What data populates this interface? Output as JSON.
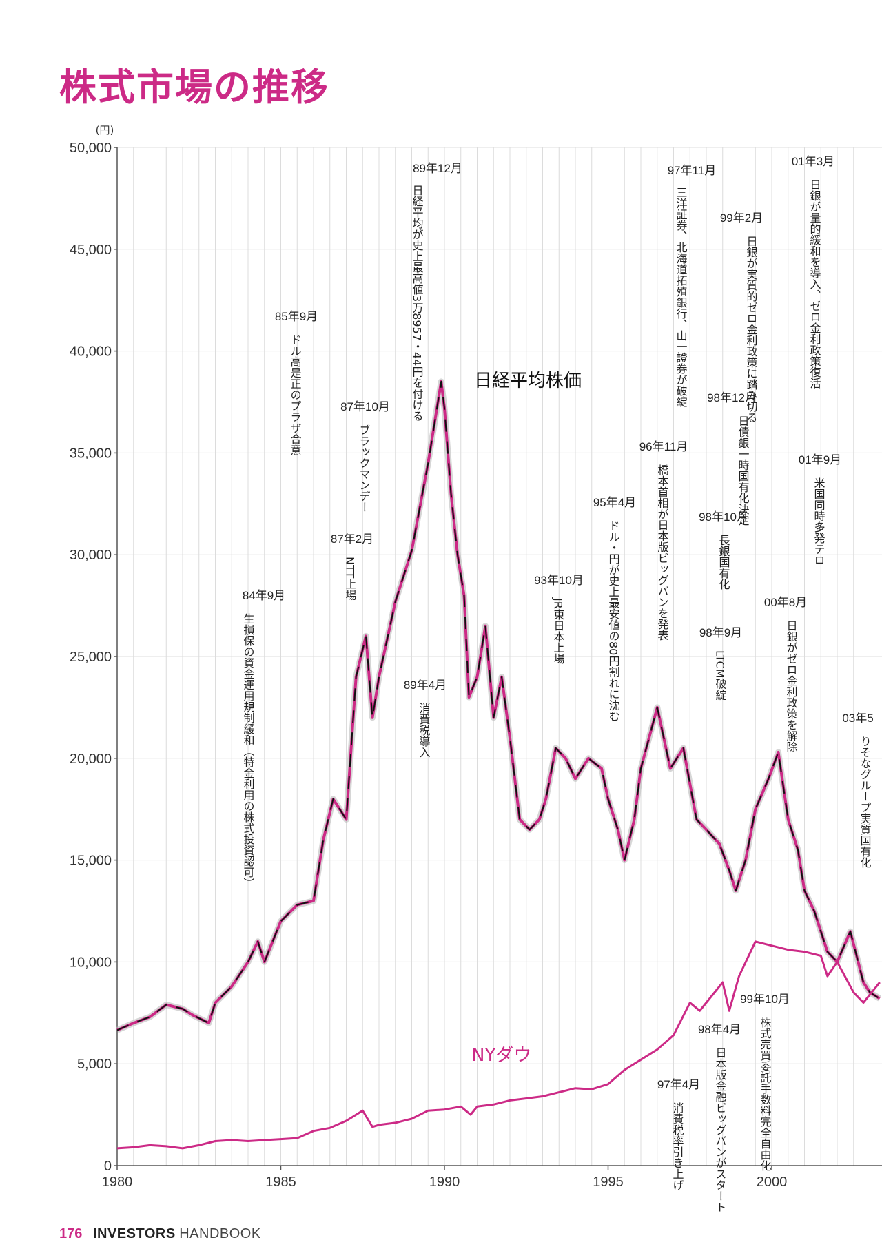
{
  "page_title": "株式市場の推移",
  "footer": {
    "page_number": "176",
    "brand": "INVESTORS",
    "handbook": "HANDBOOK"
  },
  "colors": {
    "accent": "#cc2a86",
    "nikkei_main": "#111111",
    "nikkei_shadow": "#bbbbbb"
  },
  "chart_data": {
    "type": "line",
    "y_unit": "(円)",
    "ylim": [
      0,
      50000
    ],
    "xlim": [
      1980,
      2003.5
    ],
    "y_ticks": [
      0,
      5000,
      10000,
      15000,
      20000,
      25000,
      30000,
      35000,
      40000,
      45000,
      50000
    ],
    "y_tick_labels": [
      "0",
      "5,000",
      "10,000",
      "15,000",
      "20,000",
      "25,000",
      "30,000",
      "35,000",
      "40,000",
      "45,000",
      "50,000"
    ],
    "x_ticks": [
      1980,
      1985,
      1990,
      1995,
      2000
    ],
    "x_tick_labels": [
      "1980",
      "1985",
      "1990",
      "1995",
      "2000"
    ],
    "grid": true,
    "series": [
      {
        "name": "日経平均株価",
        "x": [
          1980.0,
          1980.5,
          1981.0,
          1981.5,
          1982.0,
          1982.3,
          1982.8,
          1983.0,
          1983.5,
          1984.0,
          1984.3,
          1984.5,
          1984.8,
          1985.0,
          1985.5,
          1986.0,
          1986.3,
          1986.6,
          1987.0,
          1987.3,
          1987.6,
          1987.8,
          1988.0,
          1988.5,
          1989.0,
          1989.5,
          1989.9,
          1990.0,
          1990.2,
          1990.4,
          1990.6,
          1990.75,
          1991.0,
          1991.25,
          1991.5,
          1991.75,
          1992.0,
          1992.3,
          1992.6,
          1992.9,
          1993.1,
          1993.4,
          1993.7,
          1994.0,
          1994.4,
          1994.8,
          1995.0,
          1995.3,
          1995.5,
          1995.8,
          1996.0,
          1996.5,
          1996.9,
          1997.3,
          1997.7,
          1998.0,
          1998.4,
          1998.7,
          1998.9,
          1999.2,
          1999.5,
          1999.9,
          2000.2,
          2000.5,
          2000.8,
          2001.0,
          2001.3,
          2001.7,
          2002.0,
          2002.4,
          2002.8,
          2003.0,
          2003.3
        ],
        "values": [
          6650,
          7000,
          7300,
          7900,
          7700,
          7400,
          7000,
          8000,
          8800,
          10000,
          11000,
          10000,
          11200,
          12000,
          12800,
          13000,
          16000,
          18000,
          17000,
          24000,
          26000,
          22000,
          24000,
          27700,
          30200,
          34500,
          38500,
          37200,
          33000,
          30000,
          28000,
          23000,
          24000,
          26500,
          22000,
          24000,
          21000,
          17000,
          16500,
          17000,
          18000,
          20500,
          20000,
          19000,
          20000,
          19500,
          18000,
          16500,
          15000,
          17000,
          19500,
          22500,
          19500,
          20500,
          17000,
          16500,
          15800,
          14500,
          13500,
          15000,
          17500,
          19000,
          20300,
          17000,
          15500,
          13500,
          12500,
          10500,
          10000,
          11500,
          9000,
          8500,
          8200
        ]
      },
      {
        "name": "NYダウ",
        "x": [
          1980.0,
          1980.5,
          1981.0,
          1981.5,
          1982.0,
          1982.5,
          1983.0,
          1983.5,
          1984.0,
          1984.5,
          1985.0,
          1985.5,
          1986.0,
          1986.5,
          1987.0,
          1987.5,
          1987.8,
          1988.0,
          1988.5,
          1989.0,
          1989.5,
          1990.0,
          1990.5,
          1990.8,
          1991.0,
          1991.5,
          1992.0,
          1992.5,
          1993.0,
          1993.5,
          1994.0,
          1994.5,
          1995.0,
          1995.5,
          1996.0,
          1996.5,
          1997.0,
          1997.5,
          1997.8,
          1998.0,
          1998.5,
          1998.7,
          1999.0,
          1999.5,
          2000.0,
          2000.5,
          2001.0,
          2001.5,
          2001.7,
          2002.0,
          2002.5,
          2002.8,
          2003.0,
          2003.3
        ],
        "values": [
          850,
          900,
          1000,
          950,
          850,
          1000,
          1200,
          1250,
          1200,
          1250,
          1300,
          1350,
          1700,
          1850,
          2200,
          2700,
          1900,
          2000,
          2100,
          2300,
          2700,
          2750,
          2900,
          2500,
          2900,
          3000,
          3200,
          3300,
          3400,
          3600,
          3800,
          3750,
          4000,
          4700,
          5200,
          5700,
          6400,
          8000,
          7600,
          8000,
          9000,
          7600,
          9300,
          11000,
          10800,
          10600,
          10500,
          10300,
          9300,
          10000,
          8500,
          8000,
          8400,
          9000
        ]
      }
    ],
    "series_labels": [
      "日経平均株価",
      "NYダウ"
    ],
    "annotations": [
      {
        "date": "84年9月",
        "text": "生損保の資金運用規制緩和（特金利用の株式投資認可）"
      },
      {
        "date": "85年9月",
        "text": "ドル高是正のプラザ合意"
      },
      {
        "date": "87年2月",
        "text": "NTT上場"
      },
      {
        "date": "87年10月",
        "text": "ブラックマンデー"
      },
      {
        "date": "89年4月",
        "text": "消費税導入"
      },
      {
        "date": "89年12月",
        "text": "日経平均が史上最高値3万8957・44円を付ける"
      },
      {
        "date": "93年10月",
        "text": "JR東日本上場"
      },
      {
        "date": "95年4月",
        "text": "ドル・円が史上最安値の80円割れに沈む"
      },
      {
        "date": "96年11月",
        "text": "橋本首相が日本版ビッグバンを発表"
      },
      {
        "date": "97年4月",
        "text": "消費税率引き上げ"
      },
      {
        "date": "97年11月",
        "text": "三洋証券、北海道拓殖銀行、山一證券が破綻"
      },
      {
        "date": "98年4月",
        "text": "日本版金融ビッグバンがスタート"
      },
      {
        "date": "98年9月",
        "text": "LTCM破綻"
      },
      {
        "date": "98年10月",
        "text": "長銀国有化"
      },
      {
        "date": "98年12月",
        "text": "日債銀一時国有化決定"
      },
      {
        "date": "99年2月",
        "text": "日銀が実質的ゼロ金利政策に踏み切る"
      },
      {
        "date": "99年10月",
        "text": "株式売買委託手数料完全自由化"
      },
      {
        "date": "00年8月",
        "text": "日銀がゼロ金利政策を解除"
      },
      {
        "date": "01年3月",
        "text": "日銀が量的緩和を導入、ゼロ金利政策復活"
      },
      {
        "date": "01年9月",
        "text": "米国同時多発テロ"
      },
      {
        "date": "03年5",
        "text": "りそなグループ実質国有化"
      }
    ]
  }
}
